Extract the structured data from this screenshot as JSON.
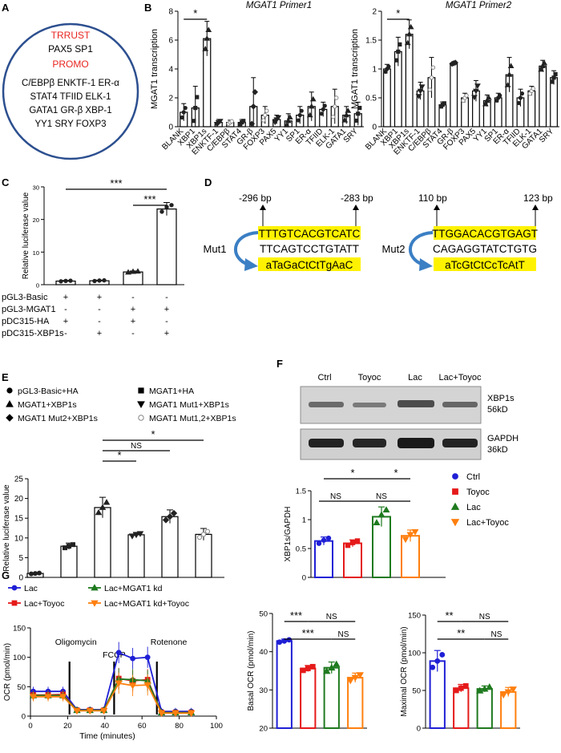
{
  "panels": {
    "A": "A",
    "B": "B",
    "C": "C",
    "D": "D",
    "E": "E",
    "F": "F",
    "G": "G"
  },
  "panel_a": {
    "trrust_label": "TRRUST",
    "trrust_list": "PAX5 SP1",
    "promo_label": "PROMO",
    "promo_lines": [
      "C/EBPβ ENKTF-1 ER-α",
      "STAT4 TFIID ELK-1",
      "GATA1 GR-β XBP-1",
      "YY1 SRY FOXP3"
    ],
    "red": "#e8251f",
    "circle_color": "#2c4f8f"
  },
  "panel_d": {
    "bp1": "-296 bp",
    "bp2": "-283 bp",
    "bp3": "110 bp",
    "bp4": "123 bp",
    "mut1": "Mut1",
    "mut2": "Mut2",
    "wt1": "TTTGTCACGTCATC",
    "alt1": "TTCAGTCCTGTATT",
    "low1": "aTaGaCtCtTgAaC",
    "wt2": "TTGGACACGTGAGT",
    "alt2": "CAGAGGTATCTGTG",
    "low2": "aTcGtCtCcTcAtT",
    "highlight": "#fff200",
    "arrow_color": "#3b7fc4"
  },
  "panel_f_blot": {
    "lanes": [
      "Ctrl",
      "Toyoc",
      "Lac",
      "Lac+Toyoc"
    ],
    "band1_label": "XBP1s",
    "band1_kd": "56kD",
    "band2_label": "GAPDH",
    "band2_kd": "36kD"
  },
  "chart_data": [
    {
      "id": "B1",
      "type": "bar",
      "title": "MGAT1 Primer1",
      "ylabel": "MGAT1 transcription",
      "xlabel": "",
      "ylim": [
        0,
        8
      ],
      "yticks": [
        0,
        2,
        4,
        6,
        8
      ],
      "categories": [
        "BLANK",
        "XBP1",
        "XBP1s",
        "ENKTF-1",
        "C/EBPβ",
        "STAT4",
        "GR-β",
        "FOXP3",
        "PAX5",
        "YY1",
        "SP1",
        "ER-α",
        "TFIID",
        "ELK-1",
        "GATA1",
        "SRY"
      ],
      "values": [
        1.0,
        1.3,
        6.1,
        0.3,
        0.3,
        0.3,
        1.4,
        0.8,
        0.5,
        0.4,
        0.8,
        1.4,
        1.2,
        1.4,
        0.8,
        0.9
      ],
      "errors": [
        0.6,
        1.5,
        1.2,
        0.2,
        0.15,
        0.2,
        2.0,
        0.6,
        0.3,
        0.5,
        0.6,
        1.0,
        0.5,
        1.2,
        0.6,
        0.8
      ],
      "significance": [
        {
          "from": "BLANK",
          "to": "XBP1s",
          "label": "*"
        }
      ]
    },
    {
      "id": "B2",
      "type": "bar",
      "title": "MGAT1 Primer2",
      "ylabel": "MGAT1 transcription",
      "xlabel": "",
      "ylim": [
        0,
        2.0
      ],
      "yticks": [
        0.0,
        0.5,
        1.0,
        1.5,
        2.0
      ],
      "categories": [
        "BLANK",
        "XBP1",
        "XBP1s",
        "ENKTF-1",
        "C/EBPβ",
        "STAT4",
        "GR-β",
        "FOXP3",
        "PAX5",
        "YY1",
        "SP1",
        "ER-α",
        "TFIID",
        "ELK-1",
        "GATA1",
        "SRY"
      ],
      "values": [
        1.0,
        1.3,
        1.6,
        0.62,
        0.85,
        0.38,
        1.1,
        0.5,
        0.62,
        0.45,
        0.5,
        0.9,
        0.5,
        0.62,
        1.05,
        0.85
      ],
      "errors": [
        0.08,
        0.25,
        0.25,
        0.15,
        0.35,
        0.05,
        0.02,
        0.08,
        0.18,
        0.1,
        0.08,
        0.3,
        0.15,
        0.08,
        0.1,
        0.12
      ],
      "significance": [
        {
          "from": "BLANK",
          "to": "XBP1s",
          "label": "*"
        }
      ]
    },
    {
      "id": "C",
      "type": "bar",
      "ylabel": "Relative luciferase value",
      "ylim": [
        0,
        30
      ],
      "yticks": [
        0,
        10,
        20,
        30
      ],
      "categories": [
        "1",
        "2",
        "3",
        "4"
      ],
      "values": [
        1.1,
        1.2,
        3.9,
        23.2
      ],
      "errors": [
        0.2,
        0.2,
        0.3,
        2.0
      ],
      "row_labels": [
        "pGL3-Basic",
        "pGL3-MGAT1",
        "pDC315-HA",
        "pDC315-XBP1s"
      ],
      "row_signs": [
        [
          "+",
          "+",
          "-",
          "-"
        ],
        [
          "-",
          "-",
          "+",
          "+"
        ],
        [
          "+",
          "-",
          "+",
          "-"
        ],
        [
          "-",
          "+",
          "-",
          "+"
        ]
      ],
      "significance": [
        {
          "from": "1",
          "to": "4",
          "label": "***"
        },
        {
          "from": "3",
          "to": "4",
          "label": "***"
        }
      ]
    },
    {
      "id": "E",
      "type": "bar",
      "ylabel": "Relative luciferase value",
      "ylim": [
        0,
        25
      ],
      "yticks": [
        0,
        5,
        10,
        15,
        20,
        25
      ],
      "series": [
        {
          "name": "pGL3-Basic+HA",
          "marker": "circle-filled"
        },
        {
          "name": "MGAT1+HA",
          "marker": "square"
        },
        {
          "name": "MGAT1+XBP1s",
          "marker": "triangle-up"
        },
        {
          "name": "MGAT1 Mut1+XBP1s",
          "marker": "triangle-down"
        },
        {
          "name": "MGAT1 Mut2+XBP1s",
          "marker": "diamond"
        },
        {
          "name": "MGAT1 Mut1,2+XBP1s",
          "marker": "circle-open"
        }
      ],
      "values": [
        1.0,
        7.9,
        17.7,
        10.8,
        15.4,
        10.9
      ],
      "errors": [
        0.2,
        0.8,
        2.6,
        0.6,
        1.7,
        1.5
      ],
      "significance": [
        {
          "from": 3,
          "to": 4,
          "label": "*"
        },
        {
          "from": 3,
          "to": 5,
          "label": "NS"
        },
        {
          "from": 3,
          "to": 6,
          "label": "*"
        }
      ]
    },
    {
      "id": "F",
      "type": "bar",
      "ylabel": "XBP1s/GAPDH",
      "ylim": [
        0.0,
        1.5
      ],
      "yticks": [
        0.0,
        0.5,
        1.0,
        1.5
      ],
      "series": [
        {
          "name": "Ctrl",
          "color": "#1f1fd6",
          "marker": "circle"
        },
        {
          "name": "Toyoc",
          "color": "#e51a1a",
          "marker": "square"
        },
        {
          "name": "Lac",
          "color": "#1f7a1f",
          "marker": "triangle-up"
        },
        {
          "name": "Lac+Toyoc",
          "color": "#ff7f0e",
          "marker": "triangle-down"
        }
      ],
      "values": [
        0.63,
        0.59,
        1.05,
        0.72
      ],
      "errors": [
        0.07,
        0.06,
        0.17,
        0.1
      ],
      "significance": [
        {
          "from": 1,
          "to": 2,
          "label": "NS"
        },
        {
          "from": 1,
          "to": 3,
          "label": "*"
        },
        {
          "from": 3,
          "to": 4,
          "label": "*"
        },
        {
          "from": 2,
          "to": 4,
          "label": "NS"
        }
      ]
    },
    {
      "id": "G1",
      "type": "line",
      "xlabel": "Time (minutes)",
      "ylabel": "OCR (pmol/min)",
      "xlim": [
        0,
        100
      ],
      "xticks": [
        0,
        20,
        40,
        60,
        80,
        100
      ],
      "ylim": [
        0,
        150
      ],
      "yticks": [
        0,
        50,
        100,
        150
      ],
      "annotations": [
        {
          "label": "Oligomycin",
          "x": 21
        },
        {
          "label": "FCCP",
          "x": 45
        },
        {
          "label": "Rotenone",
          "x": 68
        }
      ],
      "x": [
        1.5,
        9.5,
        17.5,
        25,
        32,
        39.5,
        47.5,
        55,
        63,
        70.5,
        78,
        86.5
      ],
      "series": [
        {
          "name": "Lac",
          "color": "#1f1fd6",
          "marker": "circle",
          "values": [
            42,
            42,
            42,
            11,
            11,
            11,
            108,
            98,
            100,
            8,
            8,
            8
          ]
        },
        {
          "name": "Lac+Toyoc",
          "color": "#e51a1a",
          "marker": "square",
          "values": [
            36,
            36,
            37,
            10,
            10,
            10,
            64,
            60,
            62,
            6,
            6,
            6
          ]
        },
        {
          "name": "Lac+MGAT1 kd",
          "color": "#1f7a1f",
          "marker": "triangle-up",
          "values": [
            35,
            35,
            35,
            10,
            10,
            10,
            63,
            62,
            60,
            6,
            6,
            6
          ]
        },
        {
          "name": "Lac+MGAT1 kd+Toyoc",
          "color": "#ff7f0e",
          "marker": "triangle-down",
          "values": [
            33,
            33,
            33,
            9,
            9,
            9,
            56,
            52,
            53,
            5,
            5,
            5
          ]
        }
      ],
      "errors": [
        8,
        8,
        8,
        5,
        5,
        5,
        18,
        18,
        18,
        6,
        6,
        6
      ]
    },
    {
      "id": "G2",
      "type": "bar",
      "ylabel": "Basal OCR (pmol/min)",
      "ylim": [
        20,
        50
      ],
      "yticks": [
        20,
        30,
        40,
        50
      ],
      "series": [
        {
          "name": "Lac",
          "color": "#1f1fd6",
          "marker": "circle"
        },
        {
          "name": "Lac+Toyoc",
          "color": "#e51a1a",
          "marker": "square"
        },
        {
          "name": "Lac+MGAT1 kd",
          "color": "#1f7a1f",
          "marker": "triangle-up"
        },
        {
          "name": "Lac+MGAT1 kd+Toyoc",
          "color": "#ff7f0e",
          "marker": "triangle-down"
        }
      ],
      "values": [
        42.8,
        35.6,
        35.8,
        33.2
      ],
      "errors": [
        0.5,
        0.8,
        1.5,
        1.2
      ],
      "significance": [
        {
          "from": 1,
          "to": 2,
          "label": "***"
        },
        {
          "from": 2,
          "to": 4,
          "label": "NS"
        },
        {
          "from": 1,
          "to": 3,
          "label": "***"
        },
        {
          "from": 3,
          "to": 4,
          "label": "NS"
        }
      ]
    },
    {
      "id": "G3",
      "type": "bar",
      "ylabel": "Maximal OCR (pmol/min)",
      "ylim": [
        0,
        150
      ],
      "yticks": [
        0,
        50,
        100,
        150
      ],
      "series": [
        {
          "name": "Lac",
          "color": "#1f1fd6",
          "marker": "circle"
        },
        {
          "name": "Lac+Toyoc",
          "color": "#e51a1a",
          "marker": "square"
        },
        {
          "name": "Lac+MGAT1 kd",
          "color": "#1f7a1f",
          "marker": "triangle-up"
        },
        {
          "name": "Lac+MGAT1 kd+Toyoc",
          "color": "#ff7f0e",
          "marker": "triangle-down"
        }
      ],
      "values": [
        89,
        53,
        52,
        48
      ],
      "errors": [
        14,
        5,
        4,
        6
      ],
      "significance": [
        {
          "from": 1,
          "to": 2,
          "label": "**"
        },
        {
          "from": 2,
          "to": 4,
          "label": "NS"
        },
        {
          "from": 1,
          "to": 3,
          "label": "**"
        },
        {
          "from": 3,
          "to": 4,
          "label": "NS"
        }
      ]
    }
  ]
}
